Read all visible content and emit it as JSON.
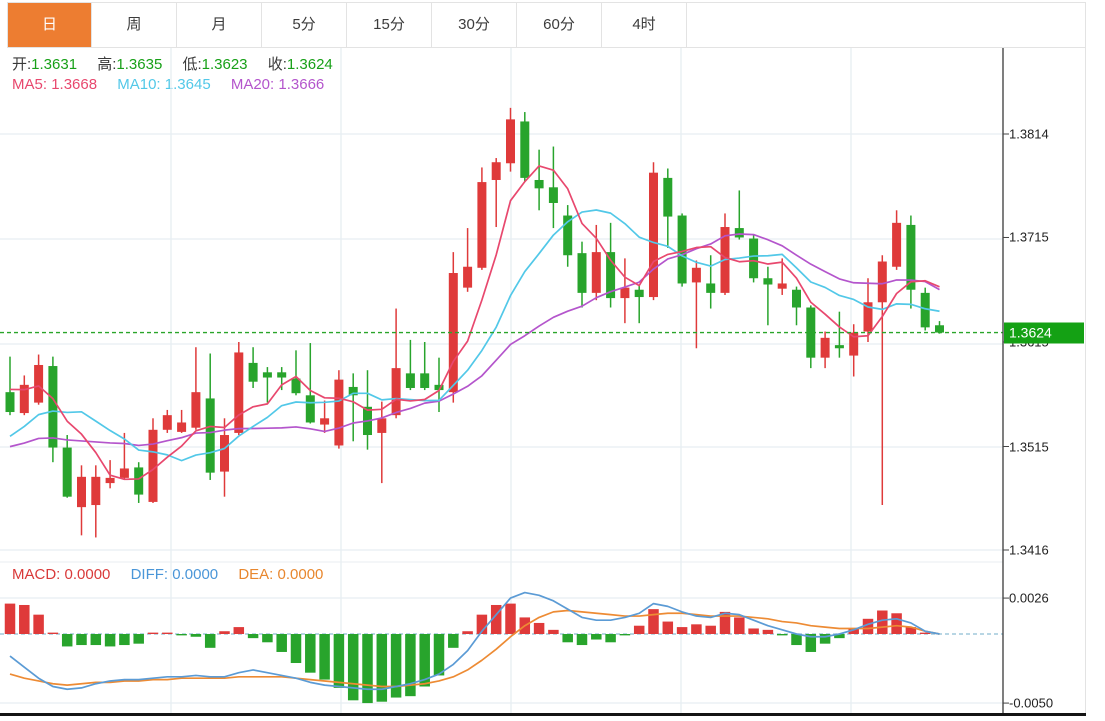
{
  "tabs": {
    "items": [
      {
        "label": "日",
        "active": true
      },
      {
        "label": "周",
        "active": false
      },
      {
        "label": "月",
        "active": false
      },
      {
        "label": "5分",
        "active": false
      },
      {
        "label": "15分",
        "active": false
      },
      {
        "label": "30分",
        "active": false
      },
      {
        "label": "60分",
        "active": false
      },
      {
        "label": "4时",
        "active": false
      }
    ]
  },
  "ohlc_legend": {
    "open_label": "开:",
    "open_value": "1.3631",
    "high_label": "高:",
    "high_value": "1.3635",
    "low_label": "低:",
    "low_value": "1.3623",
    "close_label": "收:",
    "close_value": "1.3624"
  },
  "ma_legend": {
    "ma5_label": "MA5:",
    "ma5_value": "1.3668",
    "ma10_label": "MA10:",
    "ma10_value": "1.3645",
    "ma20_label": "MA20:",
    "ma20_value": "1.3666"
  },
  "macd_legend": {
    "macd_label": "MACD:",
    "macd_value": "0.0000",
    "diff_label": "DIFF:",
    "diff_value": "0.0000",
    "dea_label": "DEA:",
    "dea_value": "0.0000"
  },
  "price_axis": {
    "ticks": [
      {
        "label": "1.3814",
        "value": 1.3814
      },
      {
        "label": "1.3715",
        "value": 1.3715
      },
      {
        "label": "1.3615",
        "value": 1.3615
      },
      {
        "label": "1.3515",
        "value": 1.3515
      },
      {
        "label": "1.3416",
        "value": 1.3416
      }
    ],
    "current_label": "1.3624",
    "current_value": 1.3624
  },
  "macd_axis": {
    "ticks": [
      {
        "label": "0.0026",
        "value": 0.0026
      },
      {
        "label": "-0.0050",
        "value": -0.005
      }
    ]
  },
  "colors": {
    "up": "#df3a3a",
    "down": "#28a42c",
    "accent_tab": "#ed7d31",
    "legend_label": "#3a3a3a",
    "legend_value_green": "#18a018",
    "ma5": "#e8486e",
    "ma10": "#52c8e8",
    "ma20": "#b455cc",
    "diff_line": "#5b9bd5",
    "dea_line": "#ed8b34",
    "macd_text": "#d93a3a",
    "diff_text": "#4a96d8",
    "dea_text": "#e8872e",
    "current_price_line": "#2aa52a",
    "badge_bg": "#14a114",
    "grid": "#e6edf2",
    "axis_line": "#3a3a3a",
    "zero_line": "#a0c8dc"
  },
  "chart_data": {
    "type": "candlestick",
    "title": "",
    "legend_position": "top-left",
    "panels": [
      {
        "name": "price",
        "ylim": [
          1.3405,
          1.3896
        ],
        "yticks": [
          1.3814,
          1.3715,
          1.3615,
          1.3515,
          1.3416
        ],
        "current_price": 1.3624,
        "ohlc_last": {
          "open": 1.3631,
          "high": 1.3635,
          "low": 1.3623,
          "close": 1.3624
        },
        "candles_ohlc": [
          [
            1.3567,
            1.3601,
            1.3545,
            1.3548
          ],
          [
            1.3547,
            1.3583,
            1.3545,
            1.3574
          ],
          [
            1.3557,
            1.3603,
            1.3555,
            1.3593
          ],
          [
            1.3592,
            1.3601,
            1.35,
            1.3514
          ],
          [
            1.3514,
            1.3526,
            1.3466,
            1.3467
          ],
          [
            1.3457,
            1.3497,
            1.343,
            1.3486
          ],
          [
            1.3459,
            1.3497,
            1.3428,
            1.3486
          ],
          [
            1.348,
            1.3502,
            1.3475,
            1.3485
          ],
          [
            1.3485,
            1.3528,
            1.3483,
            1.3494
          ],
          [
            1.3495,
            1.35,
            1.3461,
            1.3469
          ],
          [
            1.3462,
            1.3542,
            1.3461,
            1.3531
          ],
          [
            1.3531,
            1.355,
            1.3528,
            1.3545
          ],
          [
            1.3529,
            1.355,
            1.3528,
            1.3538
          ],
          [
            1.3533,
            1.361,
            1.3531,
            1.3567
          ],
          [
            1.3561,
            1.3604,
            1.3483,
            1.349
          ],
          [
            1.3491,
            1.3542,
            1.3467,
            1.3526
          ],
          [
            1.3528,
            1.3615,
            1.3526,
            1.3605
          ],
          [
            1.3595,
            1.361,
            1.3571,
            1.3577
          ],
          [
            1.3586,
            1.3591,
            1.3557,
            1.3581
          ],
          [
            1.3586,
            1.3591,
            1.3569,
            1.3581
          ],
          [
            1.358,
            1.3607,
            1.3564,
            1.3566
          ],
          [
            1.3564,
            1.3614,
            1.3537,
            1.3538
          ],
          [
            1.3536,
            1.3559,
            1.3528,
            1.3542
          ],
          [
            1.3516,
            1.3588,
            1.3513,
            1.3579
          ],
          [
            1.3572,
            1.3585,
            1.352,
            1.3564
          ],
          [
            1.3553,
            1.3588,
            1.3512,
            1.3526
          ],
          [
            1.3528,
            1.3558,
            1.348,
            1.3542
          ],
          [
            1.3545,
            1.3647,
            1.3542,
            1.359
          ],
          [
            1.3585,
            1.3617,
            1.3569,
            1.3571
          ],
          [
            1.3585,
            1.3615,
            1.3569,
            1.3571
          ],
          [
            1.3574,
            1.36,
            1.3548,
            1.3569
          ],
          [
            1.3567,
            1.3701,
            1.3557,
            1.3681
          ],
          [
            1.3667,
            1.3724,
            1.3663,
            1.3687
          ],
          [
            1.3686,
            1.3782,
            1.3684,
            1.3768
          ],
          [
            1.377,
            1.3791,
            1.3725,
            1.3787
          ],
          [
            1.3786,
            1.3839,
            1.3778,
            1.3828
          ],
          [
            1.3826,
            1.3835,
            1.3768,
            1.3772
          ],
          [
            1.377,
            1.3799,
            1.3741,
            1.3762
          ],
          [
            1.3763,
            1.3802,
            1.3724,
            1.3748
          ],
          [
            1.3736,
            1.3746,
            1.3687,
            1.3698
          ],
          [
            1.37,
            1.3711,
            1.3648,
            1.3662
          ],
          [
            1.3662,
            1.3727,
            1.3655,
            1.3701
          ],
          [
            1.3701,
            1.3729,
            1.3648,
            1.3657
          ],
          [
            1.3657,
            1.3695,
            1.3633,
            1.3667
          ],
          [
            1.3665,
            1.367,
            1.3633,
            1.3658
          ],
          [
            1.3658,
            1.3787,
            1.3655,
            1.3777
          ],
          [
            1.3772,
            1.3781,
            1.3705,
            1.3735
          ],
          [
            1.3736,
            1.3738,
            1.3668,
            1.3671
          ],
          [
            1.3672,
            1.3693,
            1.3609,
            1.3686
          ],
          [
            1.3671,
            1.3698,
            1.3647,
            1.3662
          ],
          [
            1.3662,
            1.3738,
            1.366,
            1.3725
          ],
          [
            1.3724,
            1.376,
            1.3713,
            1.3715
          ],
          [
            1.3714,
            1.3717,
            1.3672,
            1.3676
          ],
          [
            1.3676,
            1.3687,
            1.3631,
            1.367
          ],
          [
            1.3666,
            1.3695,
            1.366,
            1.3671
          ],
          [
            1.3665,
            1.3668,
            1.3631,
            1.3648
          ],
          [
            1.3648,
            1.365,
            1.359,
            1.36
          ],
          [
            1.36,
            1.3625,
            1.359,
            1.3619
          ],
          [
            1.3612,
            1.3644,
            1.36,
            1.3609
          ],
          [
            1.3602,
            1.3632,
            1.3582,
            1.3624
          ],
          [
            1.3625,
            1.3676,
            1.3615,
            1.3653
          ],
          [
            1.3653,
            1.3698,
            1.3459,
            1.3692
          ],
          [
            1.3687,
            1.3741,
            1.3684,
            1.3729
          ],
          [
            1.3727,
            1.3736,
            1.3647,
            1.3665
          ],
          [
            1.3662,
            1.3667,
            1.3626,
            1.3629
          ],
          [
            1.3631,
            1.3635,
            1.3623,
            1.3624
          ]
        ],
        "overlays": [
          {
            "name": "MA5",
            "period": 5,
            "last": 1.3668
          },
          {
            "name": "MA10",
            "period": 10,
            "last": 1.3645
          },
          {
            "name": "MA20",
            "period": 20,
            "last": 1.3666
          }
        ],
        "ma_warmup_closes": [
          1.3505,
          1.3505,
          1.3505,
          1.3505,
          1.3505,
          1.3505,
          1.3505,
          1.3505,
          1.3505,
          1.3505,
          1.348,
          1.348,
          1.348,
          1.348,
          1.348,
          1.3575,
          1.3575,
          1.3575,
          1.3575
        ]
      },
      {
        "name": "macd",
        "ylim": [
          -0.0057,
          0.0051
        ],
        "yticks": [
          0.0026,
          -0.005
        ],
        "last": {
          "macd": 0.0,
          "diff": 0.0,
          "dea": 0.0
        },
        "hist": [
          0.0022,
          0.0021,
          0.0014,
          0.0001,
          -0.0009,
          -0.0008,
          -0.0008,
          -0.0009,
          -0.0008,
          -0.0007,
          0.0001,
          0.0001,
          -0.0001,
          -0.0002,
          -0.001,
          0.0002,
          0.0005,
          -0.0003,
          -0.0006,
          -0.0013,
          -0.0021,
          -0.0028,
          -0.0033,
          -0.0039,
          -0.0048,
          -0.005,
          -0.0049,
          -0.0046,
          -0.0045,
          -0.0038,
          -0.003,
          -0.001,
          0.0002,
          0.0014,
          0.0021,
          0.0022,
          0.0012,
          0.0008,
          0.0003,
          -0.0006,
          -0.0008,
          -0.0004,
          -0.0006,
          -0.0001,
          0.0006,
          0.0018,
          0.0009,
          0.0005,
          0.0007,
          0.0006,
          0.0016,
          0.0012,
          0.0004,
          0.0003,
          -0.0001,
          -0.0008,
          -0.0013,
          -0.0007,
          -0.0003,
          0.0004,
          0.0011,
          0.0017,
          0.0015,
          0.0005,
          0.0001,
          0.0
        ],
        "diff": [
          -0.0016,
          -0.0024,
          -0.0032,
          -0.0038,
          -0.004,
          -0.0039,
          -0.0036,
          -0.0034,
          -0.0033,
          -0.0033,
          -0.0032,
          -0.0031,
          -0.0031,
          -0.003,
          -0.0031,
          -0.0031,
          -0.0028,
          -0.0026,
          -0.0028,
          -0.003,
          -0.0032,
          -0.0035,
          -0.0037,
          -0.0038,
          -0.0039,
          -0.004,
          -0.004,
          -0.0038,
          -0.0036,
          -0.0033,
          -0.0029,
          -0.0022,
          -0.0012,
          0.0002,
          0.0014,
          0.0026,
          0.003,
          0.0028,
          0.0024,
          0.0018,
          0.0012,
          0.001,
          0.001,
          0.0012,
          0.0015,
          0.0022,
          0.002,
          0.0016,
          0.0013,
          0.0012,
          0.0015,
          0.0014,
          0.001,
          0.0006,
          0.0003,
          0.0,
          -0.0002,
          -0.0002,
          0.0,
          0.0003,
          0.0007,
          0.001,
          0.0011,
          0.0008,
          0.0002,
          0.0
        ],
        "dea": [
          -0.0029,
          -0.0032,
          -0.0034,
          -0.0036,
          -0.0037,
          -0.0036,
          -0.0035,
          -0.0035,
          -0.0034,
          -0.0034,
          -0.0033,
          -0.0033,
          -0.0032,
          -0.0032,
          -0.0032,
          -0.0032,
          -0.0031,
          -0.0031,
          -0.0031,
          -0.0031,
          -0.0032,
          -0.0033,
          -0.0034,
          -0.0035,
          -0.0036,
          -0.0037,
          -0.0038,
          -0.0038,
          -0.0037,
          -0.0036,
          -0.0034,
          -0.0031,
          -0.0026,
          -0.0019,
          -0.0011,
          -0.0002,
          0.0006,
          0.0012,
          0.0016,
          0.0017,
          0.0016,
          0.0015,
          0.0014,
          0.0013,
          0.0013,
          0.0014,
          0.0015,
          0.0015,
          0.0014,
          0.0013,
          0.0013,
          0.0013,
          0.0012,
          0.0011,
          0.0009,
          0.0008,
          0.0006,
          0.0005,
          0.0004,
          0.0004,
          0.0004,
          0.0005,
          0.0006,
          0.0005,
          0.0002,
          0.0
        ]
      }
    ]
  }
}
